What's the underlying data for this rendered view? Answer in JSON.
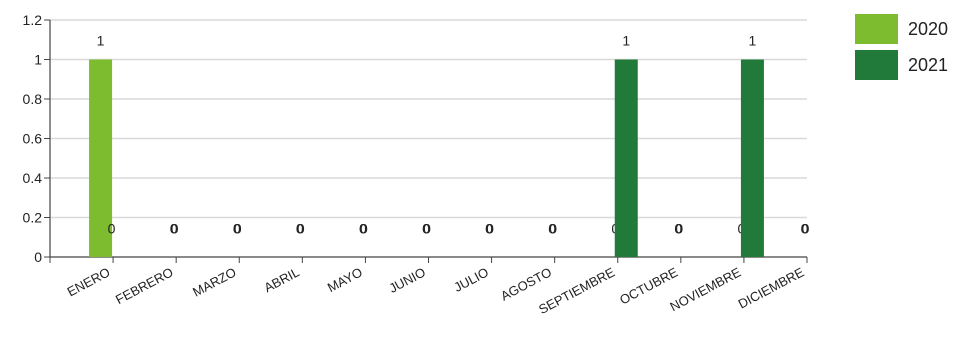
{
  "chart_data": {
    "type": "bar",
    "categories": [
      "ENERO",
      "FEBRERO",
      "MARZO",
      "ABRIL",
      "MAYO",
      "JUNIO",
      "JULIO",
      "AGOSTO",
      "SEPTIEMBRE",
      "OCTUBRE",
      "NOVIEMBRE",
      "DICIEMBRE"
    ],
    "series": [
      {
        "name": "2020",
        "color": "#7cbc2e",
        "values": [
          1,
          0,
          0,
          0,
          0,
          0,
          0,
          0,
          0,
          0,
          0,
          0
        ]
      },
      {
        "name": "2021",
        "color": "#217a3a",
        "values": [
          0,
          0,
          0,
          0,
          0,
          0,
          0,
          0,
          1,
          0,
          1,
          0
        ]
      }
    ],
    "ylim": [
      0,
      1.2
    ],
    "yticks": [
      "0",
      "0.2",
      "0.4",
      "0.6",
      "0.8",
      "1",
      "1.2"
    ],
    "grid": true,
    "legend_position": "top-right",
    "title": "",
    "xlabel": "",
    "ylabel": ""
  }
}
